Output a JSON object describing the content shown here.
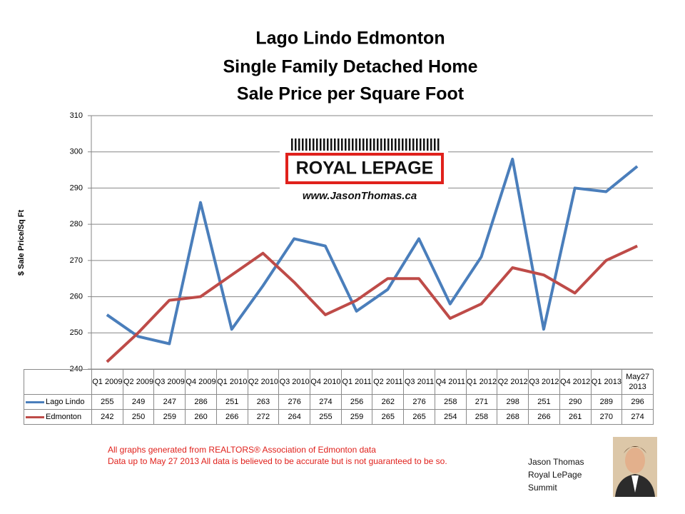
{
  "chart_data": {
    "type": "line",
    "title": "Lago Lindo Edmonton",
    "subtitle": [
      "Single Family Detached Home",
      "Sale Price per Square Foot"
    ],
    "ylabel": "$ Sale Price/Sq Ft",
    "categories": [
      "Q1 2009",
      "Q2 2009",
      "Q3 2009",
      "Q4 2009",
      "Q1 2010",
      "Q2 2010",
      "Q3 2010",
      "Q4 2010",
      "Q1 2011",
      "Q2 2011",
      "Q3 2011",
      "Q4 2011",
      "Q1 2012",
      "Q2 2012",
      "Q3 2012",
      "Q4 2012",
      "Q1 2013",
      "May27 2013"
    ],
    "series": [
      {
        "name": "Lago Lindo",
        "color": "#4a7ebb",
        "values": [
          255,
          249,
          247,
          286,
          251,
          263,
          276,
          274,
          256,
          262,
          276,
          258,
          271,
          298,
          251,
          290,
          289,
          296
        ]
      },
      {
        "name": "Edmonton",
        "color": "#be4b48",
        "values": [
          242,
          250,
          259,
          260,
          266,
          272,
          264,
          255,
          259,
          265,
          265,
          254,
          258,
          268,
          266,
          261,
          270,
          274
        ]
      }
    ],
    "ylim": [
      240,
      310
    ],
    "yticks": [
      240,
      250,
      260,
      270,
      280,
      290,
      300,
      310
    ],
    "grid": true,
    "logo": {
      "brand": "ROYAL LEPAGE",
      "url": "www.JasonThomas.ca"
    },
    "notes": [
      "All graphs generated from REALTORS® Association of Edmonton data",
      "Data up to  May 27 2013  All data is believed to be accurate but is not guaranteed to be so."
    ],
    "signature": [
      "Jason Thomas",
      "Royal LePage",
      "Summit"
    ]
  }
}
